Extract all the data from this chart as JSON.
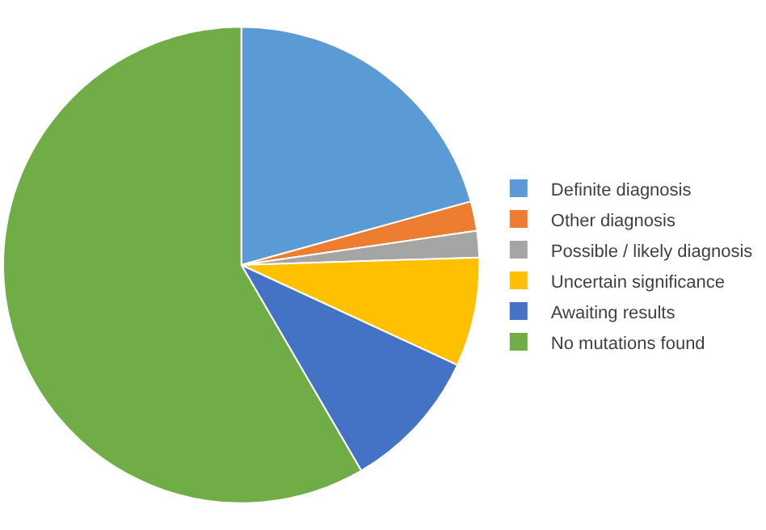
{
  "chart_data": {
    "type": "pie",
    "categories": [
      "Definite diagnosis",
      "Other diagnosis",
      "Possible / likely diagnosis",
      "Uncertain significance",
      "Awaiting results",
      "No mutations found"
    ],
    "values": [
      20.7,
      2.0,
      1.8,
      7.4,
      9.7,
      58.4
    ],
    "colors": [
      "#5b9bd5",
      "#ed7d31",
      "#a5a5a5",
      "#ffc000",
      "#4472c4",
      "#70ad47"
    ],
    "legend": "right"
  }
}
